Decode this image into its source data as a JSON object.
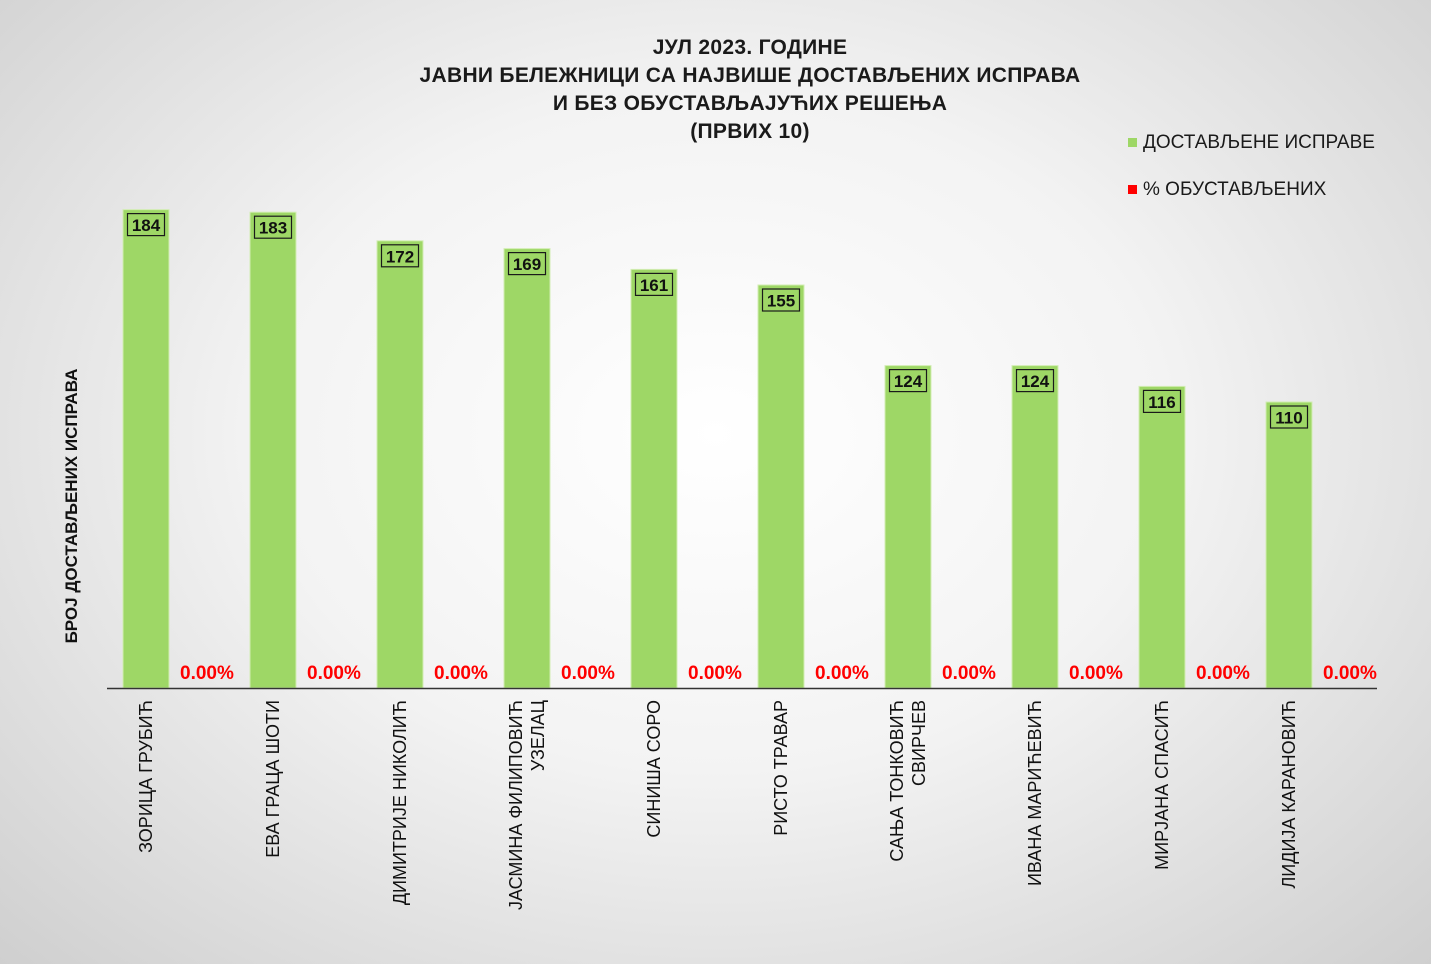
{
  "chart_data": {
    "type": "bar",
    "title_lines": [
      "ЈУЛ 2023. ГОДИНЕ",
      "ЈАВНИ БЕЛЕЖНИЦИ СА НАЈВИШЕ ДОСТАВЉЕНИХ ИСПРАВА",
      "И БЕЗ ОБУСТАВЉАЈУЋИХ РЕШЕЊА",
      "(ПРВИХ 10)"
    ],
    "ylabel": "БРОЈ ДОСТАВЉЕНИХ ИСПРАВА",
    "xlabel": "",
    "categories": [
      [
        "ЗОРИЦА ГРУБИЋ"
      ],
      [
        "ЕВА ГРАЦА ШОТИ"
      ],
      [
        "ДИМИТРИЈЕ НИКОЛИЋ"
      ],
      [
        "ЈАСМИНА ФИЛИПОВИЋ",
        "УЗЕЛАЦ"
      ],
      [
        "СИНИША СОРО"
      ],
      [
        "РИСТО ТРАВАР"
      ],
      [
        "САЊА ТОНКОВИЋ",
        "СВИРЧЕВ"
      ],
      [
        "ИВАНА МАРИЋЕВИЋ"
      ],
      [
        "МИРЈАНА СПАСИЋ"
      ],
      [
        "ЛИДИЈА КАРАНОВИЋ"
      ]
    ],
    "series": [
      {
        "name": "ДОСТАВЉЕНЕ ИСПРАВЕ",
        "color": "#9ed766",
        "values": [
          184,
          183,
          172,
          169,
          161,
          155,
          124,
          124,
          116,
          110
        ],
        "labels": [
          "184",
          "183",
          "172",
          "169",
          "161",
          "155",
          "124",
          "124",
          "116",
          "110"
        ]
      },
      {
        "name": "% ОБУСТАВЉЕНИХ",
        "color": "#ff0000",
        "values": [
          0,
          0,
          0,
          0,
          0,
          0,
          0,
          0,
          0,
          0
        ],
        "labels": [
          "0.00%",
          "0.00%",
          "0.00%",
          "0.00%",
          "0.00%",
          "0.00%",
          "0.00%",
          "0.00%",
          "0.00%",
          "0.00%"
        ]
      }
    ],
    "ylim": [
      0,
      200
    ],
    "grid": false,
    "legend_position": "top-right"
  }
}
